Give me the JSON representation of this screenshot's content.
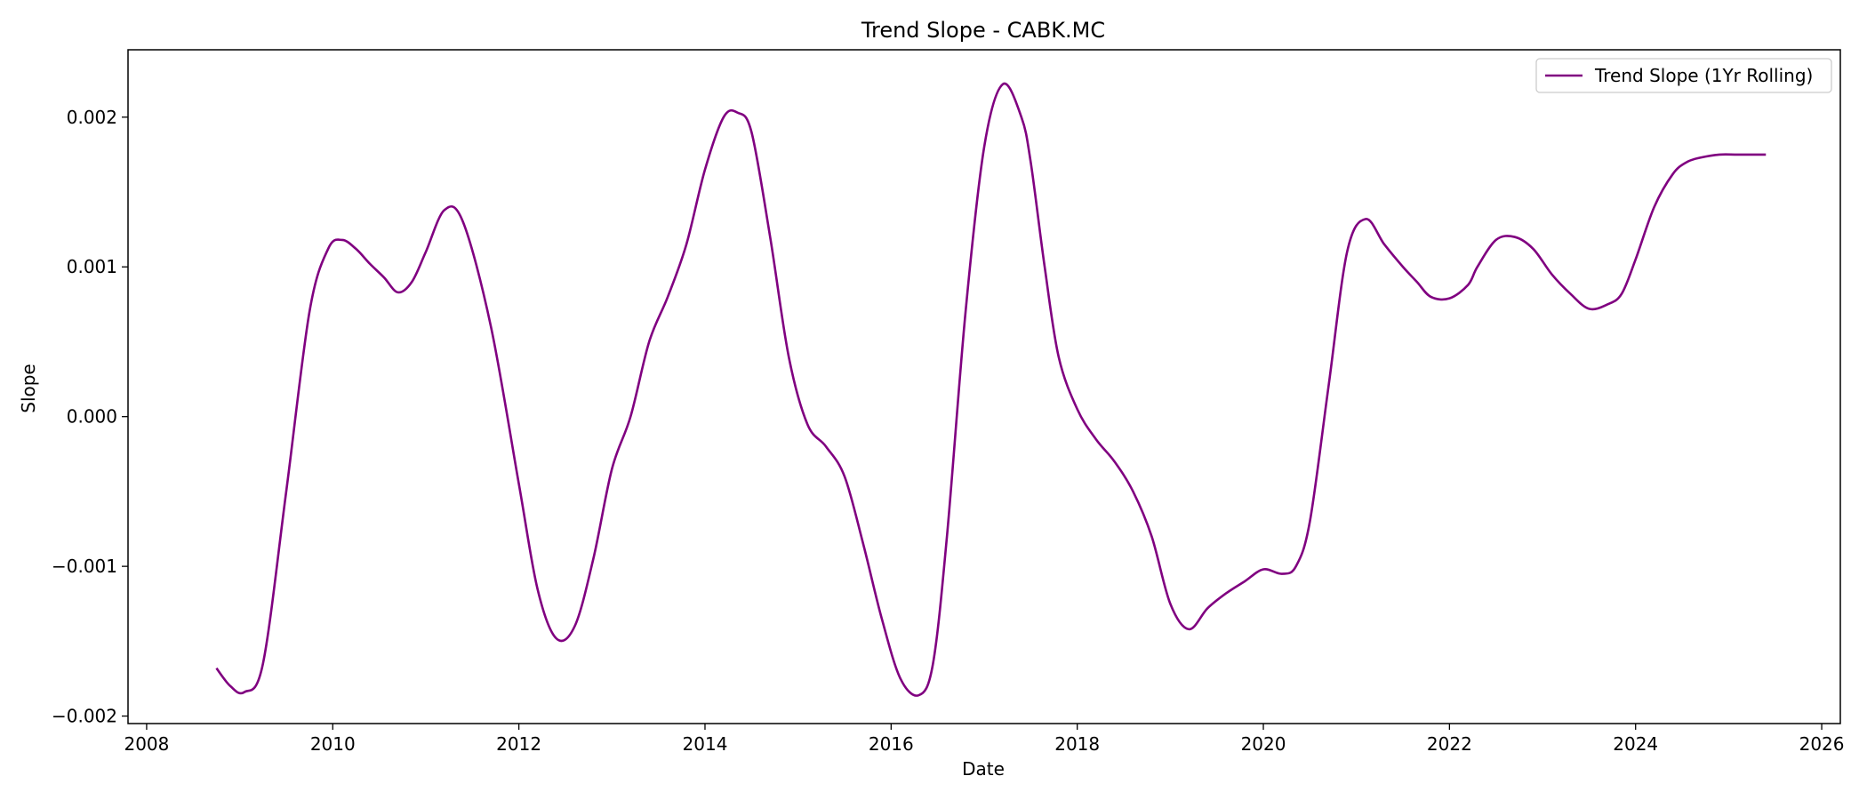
{
  "chart_data": {
    "type": "line",
    "title": "Trend Slope - CABK.MC",
    "xlabel": "Date",
    "ylabel": "Slope",
    "xlim": [
      2007.8,
      2026.2
    ],
    "ylim": [
      -0.00205,
      0.00245
    ],
    "x_ticks": [
      2008,
      2010,
      2012,
      2014,
      2016,
      2018,
      2020,
      2022,
      2024,
      2026
    ],
    "x_tick_labels": [
      "2008",
      "2010",
      "2012",
      "2014",
      "2016",
      "2018",
      "2020",
      "2022",
      "2024",
      "2026"
    ],
    "y_ticks": [
      -0.002,
      -0.001,
      0.0,
      0.001,
      0.002
    ],
    "y_tick_labels": [
      "−0.002",
      "−0.001",
      "0.000",
      "0.001",
      "0.002"
    ],
    "grid": false,
    "legend_position": "top-right",
    "series": [
      {
        "name": "Trend Slope (1Yr Rolling)",
        "color": "#800080",
        "x": [
          2008.75,
          2008.9,
          2009.05,
          2009.25,
          2009.5,
          2009.75,
          2009.95,
          2010.1,
          2010.25,
          2010.4,
          2010.55,
          2010.7,
          2010.85,
          2011.0,
          2011.2,
          2011.4,
          2011.7,
          2012.0,
          2012.2,
          2012.4,
          2012.6,
          2012.8,
          2013.0,
          2013.2,
          2013.4,
          2013.6,
          2013.8,
          2014.0,
          2014.2,
          2014.35,
          2014.5,
          2014.7,
          2014.9,
          2015.1,
          2015.3,
          2015.5,
          2015.7,
          2015.9,
          2016.1,
          2016.3,
          2016.45,
          2016.6,
          2016.8,
          2017.0,
          2017.2,
          2017.4,
          2017.5,
          2017.65,
          2017.8,
          2018.0,
          2018.2,
          2018.4,
          2018.6,
          2018.8,
          2019.0,
          2019.2,
          2019.4,
          2019.6,
          2019.8,
          2020.0,
          2020.2,
          2020.35,
          2020.5,
          2020.7,
          2020.9,
          2021.1,
          2021.3,
          2021.5,
          2021.65,
          2021.8,
          2022.0,
          2022.2,
          2022.3,
          2022.5,
          2022.7,
          2022.9,
          2023.1,
          2023.3,
          2023.5,
          2023.7,
          2023.85,
          2024.0,
          2024.2,
          2024.4,
          2024.55,
          2024.7,
          2024.9,
          2025.1,
          2025.4
        ],
        "values": [
          -0.00168,
          -0.0018,
          -0.00184,
          -0.00165,
          -0.0005,
          0.0007,
          0.00112,
          0.00118,
          0.00112,
          0.00102,
          0.00093,
          0.00083,
          0.0009,
          0.0011,
          0.00138,
          0.0013,
          0.0006,
          -0.00045,
          -0.00115,
          -0.00148,
          -0.0014,
          -0.00095,
          -0.00035,
          0.0,
          0.0005,
          0.0008,
          0.00115,
          0.00165,
          0.002,
          0.00203,
          0.0019,
          0.0012,
          0.0004,
          -5e-05,
          -0.0002,
          -0.0004,
          -0.00085,
          -0.00135,
          -0.00175,
          -0.00186,
          -0.00165,
          -0.0008,
          0.0007,
          0.0018,
          0.00222,
          0.002,
          0.0017,
          0.001,
          0.0004,
          5e-05,
          -0.00015,
          -0.0003,
          -0.0005,
          -0.0008,
          -0.00125,
          -0.00142,
          -0.00128,
          -0.00118,
          -0.0011,
          -0.00102,
          -0.00105,
          -0.001,
          -0.0007,
          0.0002,
          0.0011,
          0.00132,
          0.00115,
          0.001,
          0.0009,
          0.0008,
          0.00079,
          0.00088,
          0.001,
          0.00118,
          0.0012,
          0.00112,
          0.00095,
          0.00082,
          0.00072,
          0.00075,
          0.00082,
          0.00105,
          0.0014,
          0.00162,
          0.0017,
          0.00173,
          0.00175,
          0.00175,
          0.00175
        ]
      }
    ]
  }
}
